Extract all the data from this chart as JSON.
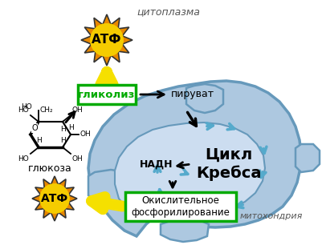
{
  "bg_color": "#ffffff",
  "mito_color": "#adc8e0",
  "mito_edge": "#6699bb",
  "inner_color": "#ccddf0",
  "cyan_color": "#55aacc",
  "atf_outer_color": "#e88800",
  "atf_inner_color": "#f5cc00",
  "green_box_color": "#00aa00",
  "yellow_color": "#f5e000",
  "krebs_label": "Цикл\nКребса",
  "cytoplasm_label": "цитоплазма",
  "mitochondria_label": "митохондрия",
  "glycolysis_label": "гликолиз",
  "pyruvate_label": "пируват",
  "nadh_label": "НАДН",
  "oxidative_label": "Окислительное\nфосфорилирование",
  "glucose_label": "глюкоза",
  "atf_label": "АТФ",
  "figsize": [
    4.01,
    3.11
  ],
  "dpi": 100
}
